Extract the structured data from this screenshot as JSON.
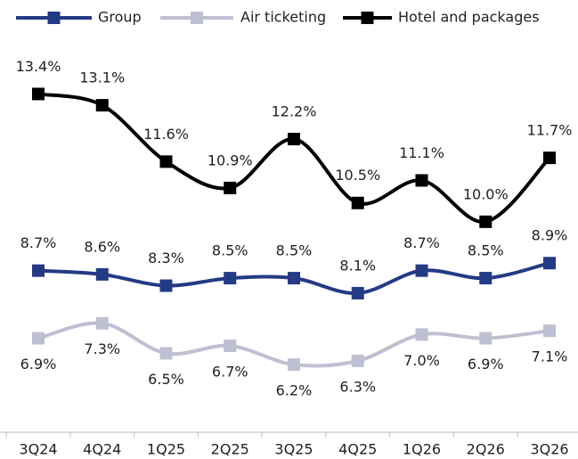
{
  "chart_data": {
    "type": "line",
    "categories": [
      "3Q24",
      "4Q24",
      "1Q25",
      "2Q25",
      "3Q25",
      "4Q25",
      "1Q26",
      "2Q26",
      "3Q26"
    ],
    "series": [
      {
        "name": "Group",
        "color": "#243a85",
        "values": [
          8.7,
          8.6,
          8.3,
          8.5,
          8.5,
          8.1,
          8.7,
          8.5,
          8.9
        ],
        "value_labels": [
          "8.7%",
          "8.6%",
          "8.3%",
          "8.5%",
          "8.5%",
          "8.1%",
          "8.7%",
          "8.5%",
          "8.9%"
        ]
      },
      {
        "name": "Air ticketing",
        "color": "#bfbfd3",
        "values": [
          6.9,
          7.3,
          6.5,
          6.7,
          6.2,
          6.3,
          7.0,
          6.9,
          7.1
        ],
        "value_labels": [
          "6.9%",
          "7.3%",
          "6.5%",
          "6.7%",
          "6.2%",
          "6.3%",
          "7.0%",
          "6.9%",
          "7.1%"
        ]
      },
      {
        "name": "Hotel and packages",
        "color": "#000000",
        "values": [
          13.4,
          13.1,
          11.6,
          10.9,
          12.2,
          10.5,
          11.1,
          10.0,
          11.7
        ],
        "value_labels": [
          "13.4%",
          "13.1%",
          "11.6%",
          "10.9%",
          "12.2%",
          "10.5%",
          "11.1%",
          "10.0%",
          "11.7%"
        ]
      }
    ],
    "ylim": [
      4.4,
      15.9
    ]
  }
}
